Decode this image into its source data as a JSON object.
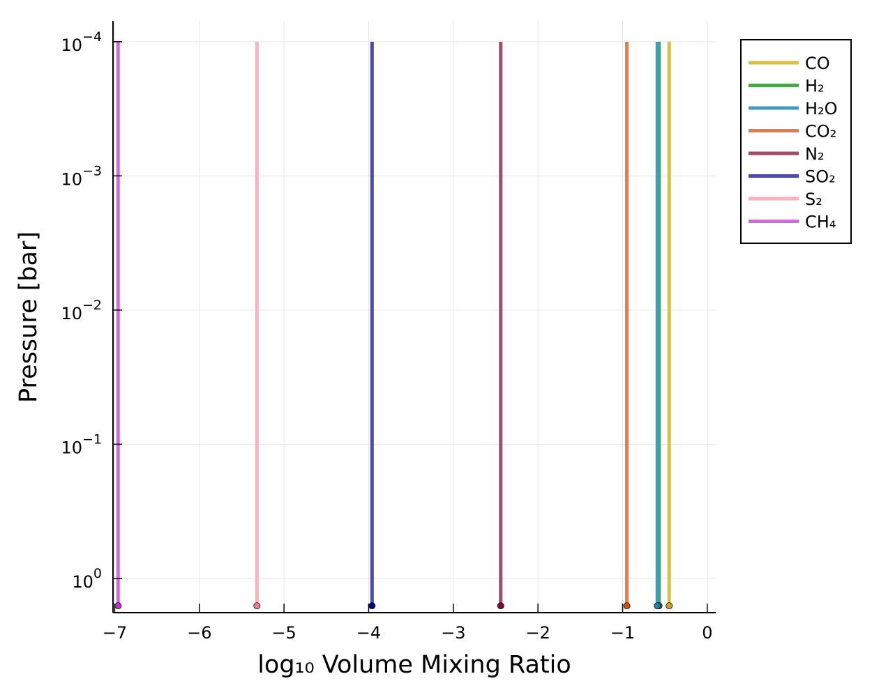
{
  "chart_data": {
    "type": "line",
    "title": "",
    "xlabel": "log₁₀ Volume Mixing Ratio",
    "ylabel": "Pressure [bar]",
    "x_range": [
      -7.02,
      0.1
    ],
    "y_scale": "log",
    "y_reversed": true,
    "y_range_bar": [
      1.8,
      7e-05
    ],
    "x_ticks": [
      -7,
      -6,
      -5,
      -4,
      -3,
      -2,
      -1,
      0
    ],
    "x_tick_labels": [
      "−7",
      "−6",
      "−5",
      "−4",
      "−3",
      "−2",
      "−1",
      "0"
    ],
    "y_ticks": [
      {
        "value": 0.0001,
        "base": "10",
        "exp": "−4"
      },
      {
        "value": 0.001,
        "base": "10",
        "exp": "−3"
      },
      {
        "value": 0.01,
        "base": "10",
        "exp": "−2"
      },
      {
        "value": 0.1,
        "base": "10",
        "exp": "−1"
      },
      {
        "value": 1,
        "base": "10",
        "exp": "0"
      }
    ],
    "grid": true,
    "legend_position": "top-right, outside",
    "surface_pressure_bar": 1.6,
    "series": [
      {
        "name": "CO",
        "color": "#d7c04a",
        "marker_color": "#c9a21f",
        "x": [
          -0.45,
          -0.45
        ],
        "y": [
          0.0001,
          1.6
        ]
      },
      {
        "name": "H₂",
        "color": "#4aa44a",
        "marker_color": "#2a8a2a",
        "x": [
          -0.57,
          -0.57
        ],
        "y": [
          0.0001,
          1.6
        ]
      },
      {
        "name": "H₂O",
        "color": "#3f9cc0",
        "marker_color": "#1f7fb0",
        "x": [
          -0.59,
          -0.59
        ],
        "y": [
          0.0001,
          1.6
        ]
      },
      {
        "name": "CO₂",
        "color": "#de7e4b",
        "marker_color": "#d35400",
        "x": [
          -0.95,
          -0.95
        ],
        "y": [
          0.0001,
          1.6
        ]
      },
      {
        "name": "N₂",
        "color": "#a54a68",
        "marker_color": "#8b0030",
        "x": [
          -2.44,
          -2.44
        ],
        "y": [
          0.0001,
          1.6
        ]
      },
      {
        "name": "SO₂",
        "color": "#4b4bab",
        "marker_color": "#000088",
        "x": [
          -3.96,
          -3.96
        ],
        "y": [
          0.0001,
          1.6
        ]
      },
      {
        "name": "S₂",
        "color": "#f8b2bb",
        "marker_color": "#f47f8f",
        "x": [
          -5.32,
          -5.32
        ],
        "y": [
          0.0001,
          1.6
        ]
      },
      {
        "name": "CH₄",
        "color": "#d666e8",
        "marker_color": "#c030d8",
        "x": [
          -6.96,
          -6.96
        ],
        "y": [
          0.0001,
          1.6
        ]
      }
    ]
  }
}
